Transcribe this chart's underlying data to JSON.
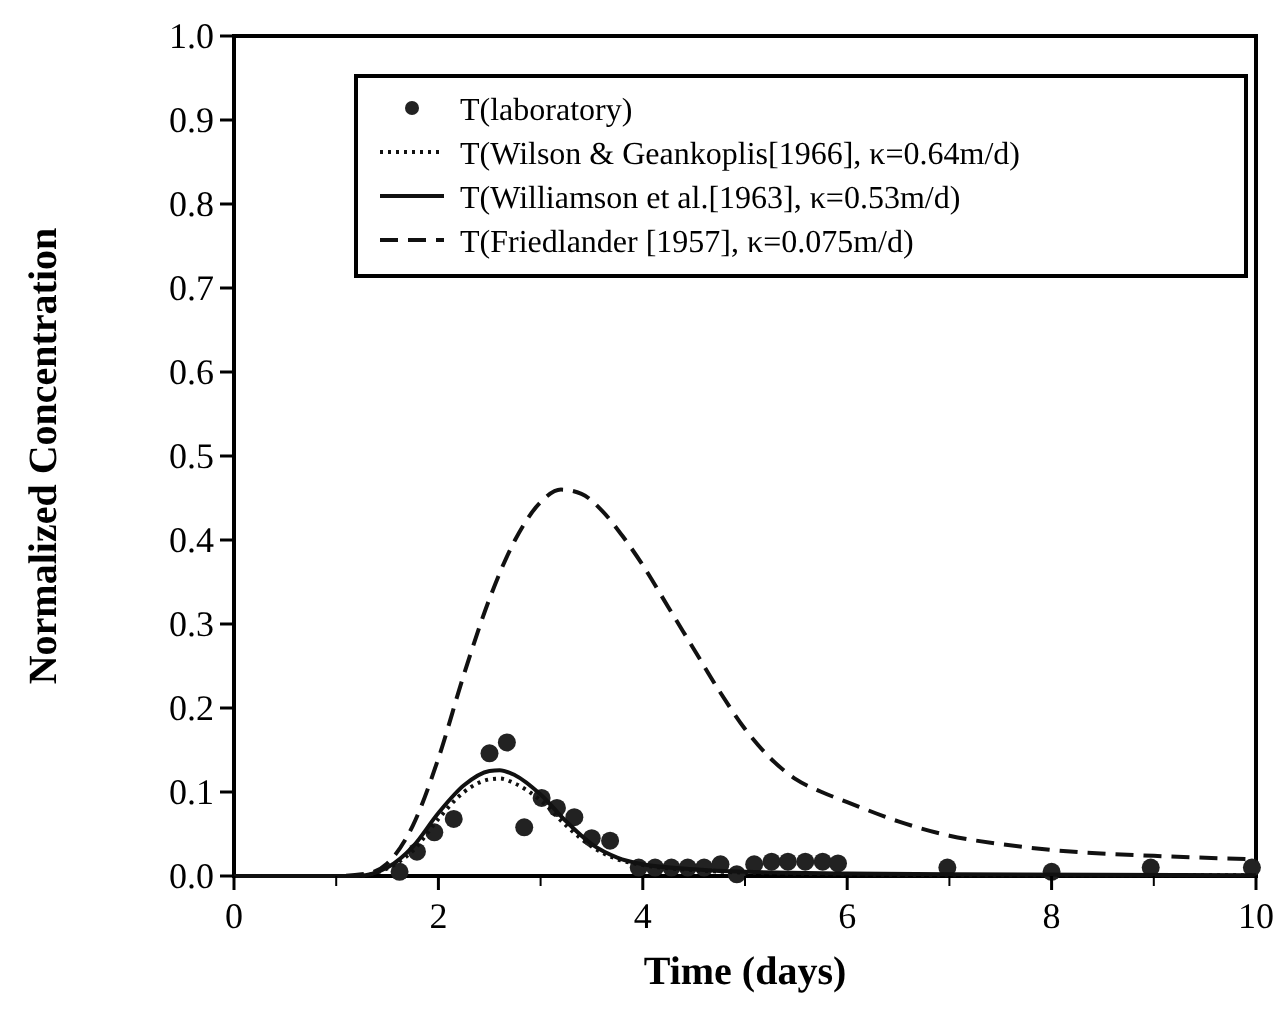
{
  "chart_data": {
    "type": "line",
    "xlabel": "Time  (days)",
    "ylabel": "Normalized  Concentration",
    "xlim": [
      0,
      10
    ],
    "ylim": [
      0,
      1
    ],
    "xticks": [
      0,
      2,
      4,
      6,
      8,
      10
    ],
    "yticks": [
      {
        "value": 0,
        "label": "0.0"
      },
      {
        "value": 0.1,
        "label": "0.1"
      },
      {
        "value": 0.2,
        "label": "0.2"
      },
      {
        "value": 0.3,
        "label": "0.3"
      },
      {
        "value": 0.4,
        "label": "0.4"
      },
      {
        "value": 0.5,
        "label": "0.5"
      },
      {
        "value": 0.6,
        "label": "0.6"
      },
      {
        "value": 0.7,
        "label": "0.7"
      },
      {
        "value": 0.8,
        "label": "0.8"
      },
      {
        "value": 0.9,
        "label": "0.9"
      },
      {
        "value": 1,
        "label": "1.0"
      }
    ],
    "legend": "top right",
    "grid": false,
    "series": [
      {
        "name": "T(laboratory)",
        "type": "scatter",
        "marker": "circle",
        "color": "#222222",
        "x": [
          1.62,
          1.79,
          1.96,
          2.15,
          2.5,
          2.67,
          2.84,
          3.01,
          3.16,
          3.33,
          3.5,
          3.68,
          3.96,
          4.12,
          4.28,
          4.44,
          4.6,
          4.76,
          4.92,
          5.09,
          5.26,
          5.42,
          5.59,
          5.76,
          5.91,
          6.98,
          8.0,
          8.97,
          9.96
        ],
        "values": [
          0.005,
          0.029,
          0.052,
          0.068,
          0.146,
          0.159,
          0.058,
          0.093,
          0.081,
          0.07,
          0.045,
          0.042,
          0.01,
          0.01,
          0.01,
          0.01,
          0.01,
          0.014,
          0.002,
          0.014,
          0.017,
          0.017,
          0.017,
          0.017,
          0.015,
          0.01,
          0.005,
          0.01,
          0.01
        ]
      },
      {
        "name": "T(Wilson & Geankoplis[1966], κ=0.64m/d)",
        "line_style": "dotted",
        "color": "#111111",
        "x": [
          0,
          1.2,
          1.5,
          1.75,
          2.0,
          2.25,
          2.5,
          2.6,
          2.75,
          3.0,
          3.25,
          3.5,
          3.75,
          4.0,
          4.5,
          5,
          6,
          7,
          10
        ],
        "values": [
          0,
          0,
          0.009,
          0.03,
          0.068,
          0.1,
          0.115,
          0.116,
          0.11,
          0.09,
          0.06,
          0.035,
          0.02,
          0.013,
          0.007,
          0.004,
          0.002,
          0.001,
          0.001
        ]
      },
      {
        "name": "T(Williamson et al.[1963], κ=0.53m/d)",
        "line_style": "solid",
        "color": "#111111",
        "x": [
          0,
          1.2,
          1.5,
          1.75,
          2.0,
          2.25,
          2.5,
          2.6,
          2.75,
          3.0,
          3.25,
          3.5,
          3.75,
          4.0,
          4.5,
          5,
          6,
          7,
          10
        ],
        "values": [
          0,
          0,
          0.01,
          0.035,
          0.075,
          0.108,
          0.125,
          0.126,
          0.12,
          0.097,
          0.065,
          0.038,
          0.022,
          0.014,
          0.008,
          0.005,
          0.003,
          0.002,
          0.001
        ]
      },
      {
        "name": "T(Friedlander [1957], κ=0.075m/d)",
        "line_style": "dashed",
        "color": "#111111",
        "x": [
          0,
          1.0,
          1.3,
          1.5,
          1.75,
          2.0,
          2.25,
          2.5,
          2.75,
          3.0,
          3.2,
          3.4,
          3.6,
          3.8,
          4.0,
          4.25,
          4.5,
          4.75,
          5.0,
          5.25,
          5.5,
          5.75,
          6.0,
          6.5,
          7.0,
          7.5,
          8.0,
          9.0,
          10
        ],
        "values": [
          0,
          0,
          0.003,
          0.015,
          0.06,
          0.14,
          0.24,
          0.33,
          0.4,
          0.445,
          0.46,
          0.455,
          0.435,
          0.405,
          0.37,
          0.32,
          0.27,
          0.22,
          0.175,
          0.14,
          0.115,
          0.1,
          0.088,
          0.065,
          0.048,
          0.038,
          0.031,
          0.024,
          0.02
        ]
      }
    ]
  }
}
